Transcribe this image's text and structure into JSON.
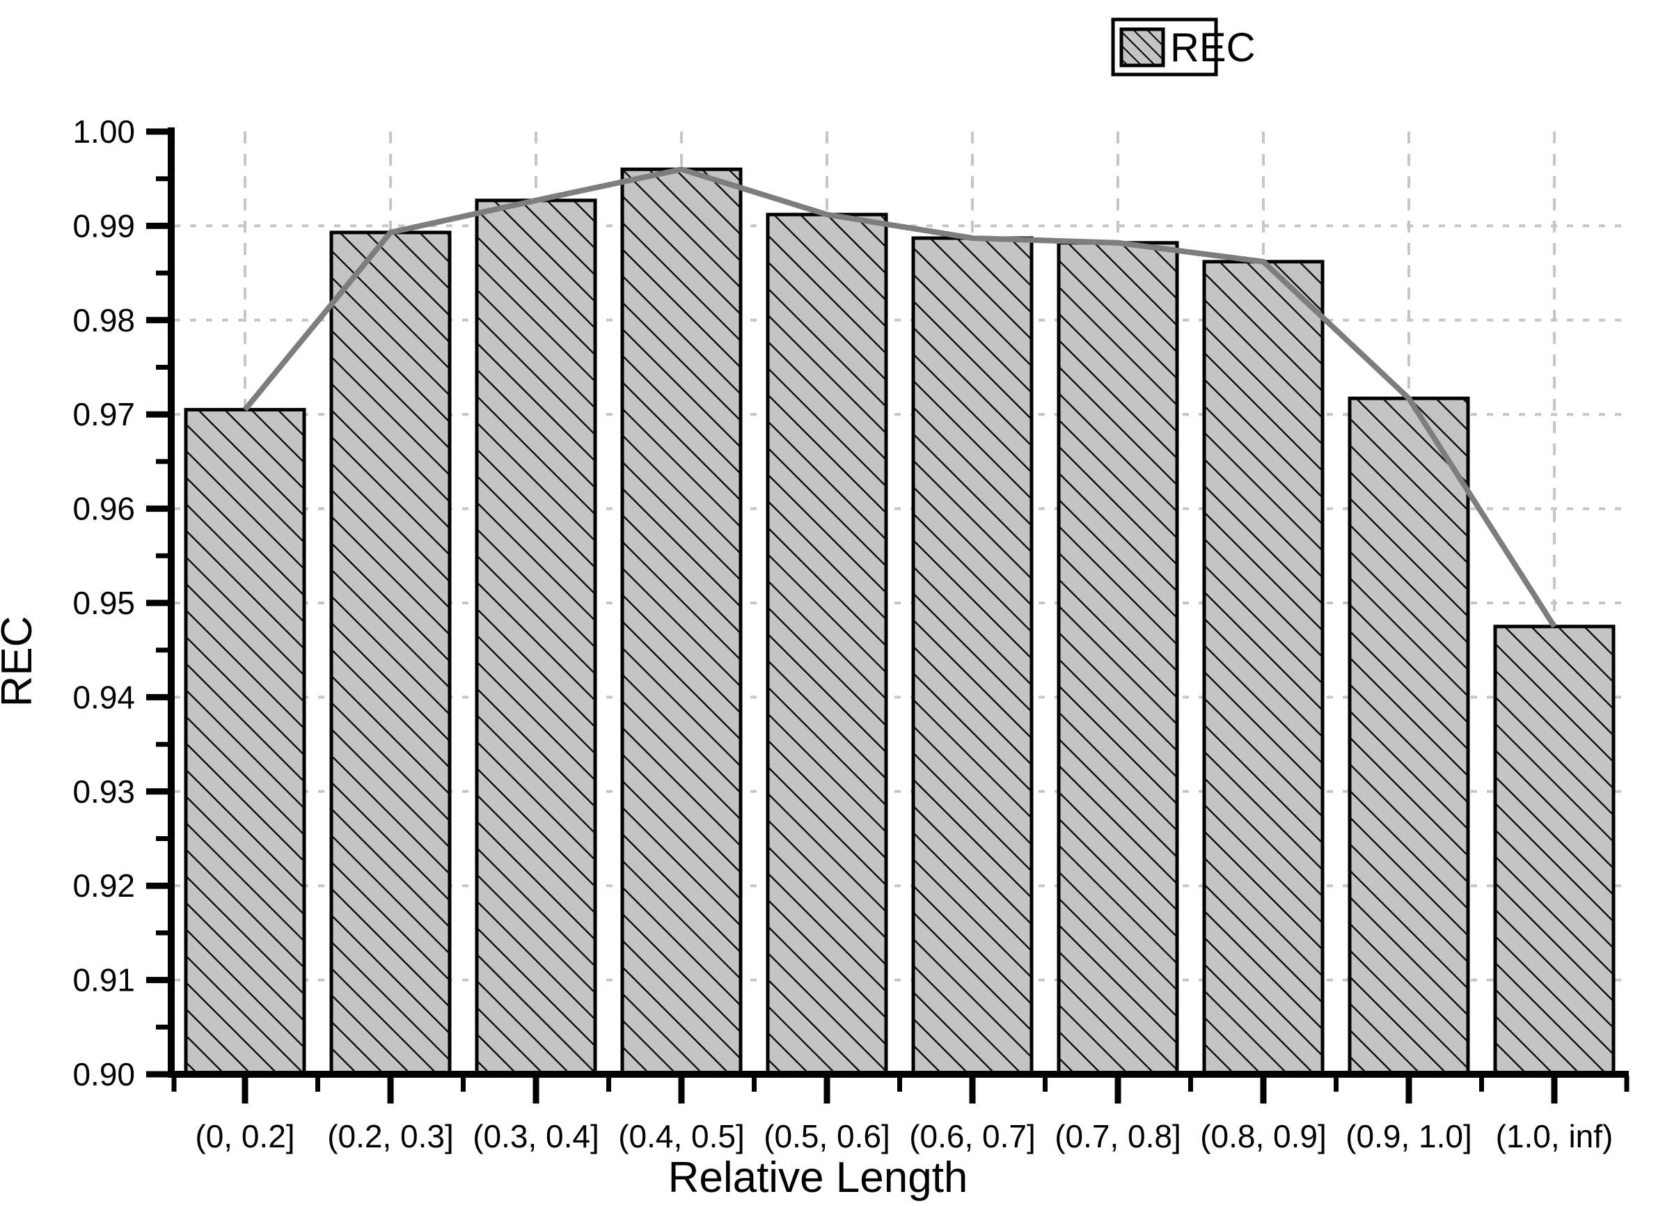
{
  "chart_data": {
    "type": "bar",
    "title": "",
    "xlabel": "Relative Length",
    "ylabel": "REC",
    "categories": [
      "(0, 0.2]",
      "(0.2, 0.3]",
      "(0.3, 0.4]",
      "(0.4, 0.5]",
      "(0.5, 0.6]",
      "(0.6, 0.7]",
      "(0.7, 0.8]",
      "(0.8, 0.9]",
      "(0.9, 1.0]",
      "(1.0, inf)"
    ],
    "series": [
      {
        "name": "REC",
        "values": [
          0.9705,
          0.9893,
          0.9927,
          0.996,
          0.9912,
          0.9887,
          0.9882,
          0.9862,
          0.9717,
          0.9475
        ]
      }
    ],
    "line_overlay": {
      "name": "REC trend line",
      "values": [
        0.9705,
        0.9893,
        0.9927,
        0.996,
        0.9912,
        0.9887,
        0.9882,
        0.9862,
        0.9717,
        0.9475
      ],
      "connects": "bar-top-centers"
    },
    "ylim": [
      0.9,
      1.0
    ],
    "ytick_step": 0.01,
    "ytick_labels": [
      "0.90",
      "0.91",
      "0.92",
      "0.93",
      "0.94",
      "0.95",
      "0.96",
      "0.97",
      "0.98",
      "0.99",
      "1.00"
    ],
    "grid": true,
    "grid_style": "dashed",
    "bar_hatch": "diagonal-forward-slash",
    "legend": {
      "label": "REC",
      "position": "top-right"
    },
    "colors": {
      "bar_fill": "#c4c4c4",
      "bar_edge": "#000000",
      "hatch": "#000000",
      "trend_line": "#7d7d7d",
      "grid": "#c6c6c6",
      "axis": "#000000",
      "background": "#ffffff",
      "text": "#000000"
    }
  }
}
